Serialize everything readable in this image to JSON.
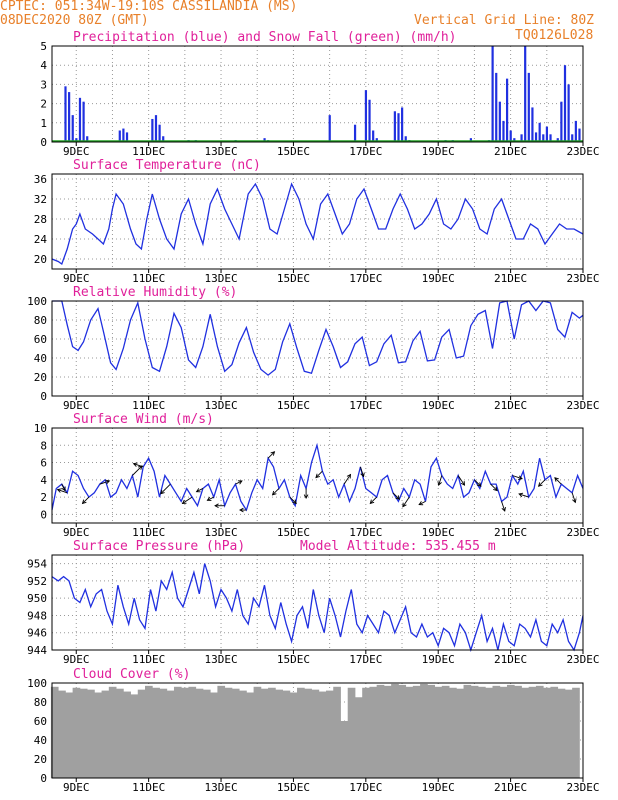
{
  "header": {
    "line1_left": "CPTEC:  051:34W-19:10S  CASSILANDIA (MS)",
    "line2_left": "08DEC2020 80Z (GMT)",
    "line2_right": "Vertical Grid Line: 80Z",
    "run_id": "TQ0126L028",
    "colors": {
      "header": "#e8802a",
      "title": "#e0209a",
      "series": "#2030e0",
      "snow": "#20a020",
      "cloud": "#a0a0a0"
    }
  },
  "chart_data": [
    {
      "type": "bar",
      "title": "Precipitation (blue) and Snow Fall (green) (mm/h)",
      "ylim": [
        0,
        5
      ],
      "yticks": [
        0,
        1,
        2,
        3,
        4,
        5
      ],
      "xticks": [
        "9DEC",
        "11DEC",
        "13DEC",
        "15DEC",
        "17DEC",
        "19DEC",
        "21DEC",
        "23DEC"
      ],
      "xlim_days": [
        8.33,
        23
      ],
      "grid": true,
      "series": [
        {
          "name": "precipitation",
          "x": [
            8.7,
            8.8,
            8.9,
            9.0,
            9.1,
            9.2,
            9.3,
            10.2,
            10.3,
            10.4,
            11.1,
            11.2,
            11.3,
            11.4,
            12.1,
            12.3,
            13.4,
            14.2,
            14.3,
            16.0,
            16.7,
            17.0,
            17.1,
            17.2,
            17.3,
            17.8,
            17.9,
            18.0,
            18.1,
            18.2,
            19.2,
            19.4,
            19.9,
            20.4,
            20.5,
            20.6,
            20.7,
            20.8,
            20.9,
            21.0,
            21.1,
            21.3,
            21.4,
            21.5,
            21.6,
            21.7,
            21.8,
            21.9,
            22.0,
            22.1,
            22.3,
            22.4,
            22.5,
            22.6,
            22.7,
            22.8,
            22.9
          ],
          "values": [
            2.9,
            2.6,
            1.4,
            0.2,
            2.3,
            2.1,
            0.3,
            0.6,
            0.7,
            0.5,
            1.2,
            1.4,
            0.9,
            0.3,
            0.1,
            0.1,
            0.1,
            0.2,
            0.1,
            1.4,
            0.9,
            2.7,
            2.2,
            0.6,
            0.2,
            1.6,
            1.5,
            1.8,
            0.3,
            0.1,
            0.1,
            0.1,
            0.2,
            0.1,
            5.0,
            3.6,
            2.1,
            1.1,
            3.3,
            0.6,
            0.2,
            0.4,
            5.0,
            3.6,
            1.8,
            0.5,
            1.0,
            0.4,
            0.8,
            0.4,
            0.2,
            2.1,
            4.0,
            3.0,
            0.4,
            1.1,
            0.7
          ]
        },
        {
          "name": "snow fall",
          "x": [],
          "values": []
        }
      ]
    },
    {
      "type": "line",
      "title": "Surface Temperature (nC)",
      "ylim": [
        18,
        37
      ],
      "yticks": [
        20,
        24,
        28,
        32,
        36
      ],
      "xticks": [
        "9DEC",
        "11DEC",
        "13DEC",
        "15DEC",
        "17DEC",
        "19DEC",
        "21DEC",
        "23DEC"
      ],
      "xlim_days": [
        8.33,
        23
      ],
      "grid": true,
      "x": [
        8.33,
        8.5,
        8.6,
        8.75,
        8.9,
        9.0,
        9.1,
        9.25,
        9.45,
        9.6,
        9.75,
        9.9,
        10.0,
        10.1,
        10.3,
        10.5,
        10.65,
        10.8,
        10.95,
        11.1,
        11.3,
        11.5,
        11.7,
        11.9,
        12.1,
        12.3,
        12.5,
        12.7,
        12.9,
        13.1,
        13.3,
        13.5,
        13.75,
        13.95,
        14.15,
        14.35,
        14.55,
        14.75,
        14.95,
        15.15,
        15.35,
        15.55,
        15.75,
        15.95,
        16.15,
        16.35,
        16.55,
        16.75,
        16.95,
        17.15,
        17.35,
        17.55,
        17.75,
        17.95,
        18.15,
        18.35,
        18.55,
        18.75,
        18.95,
        19.15,
        19.35,
        19.55,
        19.75,
        19.95,
        20.15,
        20.35,
        20.55,
        20.75,
        20.95,
        21.15,
        21.35,
        21.55,
        21.75,
        21.95,
        22.15,
        22.35,
        22.55,
        22.75,
        23.0
      ],
      "values": [
        20,
        19.5,
        19,
        22,
        26,
        27,
        29,
        26,
        25,
        24,
        23,
        26,
        30,
        33,
        31,
        26,
        23,
        22,
        28,
        33,
        28,
        24,
        22,
        29,
        32,
        27,
        23,
        31,
        34,
        30,
        27,
        24,
        33,
        35,
        32,
        26,
        25,
        30,
        35,
        32,
        27,
        24,
        31,
        33,
        29,
        25,
        27,
        32,
        34,
        30,
        26,
        26,
        30,
        33,
        30,
        26,
        27,
        29,
        32,
        27,
        26,
        28,
        32,
        30,
        26,
        25,
        30,
        32,
        28,
        24,
        24,
        27,
        26,
        23,
        25,
        27,
        26,
        26,
        25
      ]
    },
    {
      "type": "line",
      "title": "Relative Humidity (%)",
      "ylim": [
        0,
        100
      ],
      "yticks": [
        0,
        20,
        40,
        60,
        80,
        100
      ],
      "xticks": [
        "9DEC",
        "11DEC",
        "13DEC",
        "15DEC",
        "17DEC",
        "19DEC",
        "21DEC",
        "23DEC"
      ],
      "xlim_days": [
        8.33,
        23
      ],
      "grid": true,
      "x": [
        8.33,
        8.6,
        8.75,
        8.9,
        9.05,
        9.2,
        9.4,
        9.6,
        9.75,
        9.95,
        10.1,
        10.3,
        10.5,
        10.7,
        10.9,
        11.1,
        11.3,
        11.5,
        11.7,
        11.9,
        12.1,
        12.3,
        12.5,
        12.7,
        12.9,
        13.1,
        13.3,
        13.5,
        13.7,
        13.9,
        14.1,
        14.3,
        14.5,
        14.7,
        14.9,
        15.1,
        15.3,
        15.5,
        15.7,
        15.9,
        16.1,
        16.3,
        16.5,
        16.7,
        16.9,
        17.1,
        17.3,
        17.5,
        17.7,
        17.9,
        18.1,
        18.3,
        18.5,
        18.7,
        18.9,
        19.1,
        19.3,
        19.5,
        19.7,
        19.9,
        20.1,
        20.3,
        20.5,
        20.7,
        20.9,
        21.1,
        21.3,
        21.5,
        21.7,
        21.9,
        22.1,
        22.3,
        22.5,
        22.7,
        22.9,
        23.0
      ],
      "values": [
        100,
        100,
        75,
        52,
        48,
        57,
        80,
        92,
        68,
        35,
        28,
        50,
        80,
        98,
        60,
        30,
        26,
        52,
        87,
        72,
        38,
        30,
        52,
        86,
        52,
        26,
        33,
        56,
        72,
        46,
        28,
        22,
        28,
        57,
        76,
        50,
        26,
        24,
        48,
        70,
        52,
        30,
        36,
        55,
        62,
        32,
        36,
        55,
        64,
        35,
        36,
        58,
        68,
        37,
        38,
        62,
        70,
        40,
        42,
        74,
        86,
        90,
        50,
        98,
        100,
        60,
        96,
        100,
        90,
        100,
        98,
        70,
        62,
        88,
        82,
        85
      ]
    },
    {
      "type": "line",
      "title": "Surface Wind (m/s)",
      "ylim": [
        -1,
        10
      ],
      "yticks": [
        0,
        2,
        4,
        6,
        8,
        10
      ],
      "xticks": [
        "9DEC",
        "11DEC",
        "13DEC",
        "15DEC",
        "17DEC",
        "19DEC",
        "21DEC",
        "23DEC"
      ],
      "xlim_days": [
        8.33,
        23
      ],
      "grid": true,
      "x": [
        8.33,
        8.45,
        8.6,
        8.75,
        8.9,
        9.05,
        9.2,
        9.35,
        9.5,
        9.65,
        9.8,
        9.95,
        10.1,
        10.25,
        10.4,
        10.55,
        10.7,
        10.85,
        11.0,
        11.15,
        11.3,
        11.45,
        11.6,
        11.75,
        11.9,
        12.05,
        12.2,
        12.35,
        12.5,
        12.65,
        12.8,
        12.95,
        13.1,
        13.25,
        13.4,
        13.55,
        13.7,
        13.85,
        14.0,
        14.15,
        14.3,
        14.45,
        14.6,
        14.75,
        14.9,
        15.05,
        15.2,
        15.35,
        15.5,
        15.65,
        15.8,
        15.95,
        16.1,
        16.25,
        16.4,
        16.55,
        16.7,
        16.85,
        17.0,
        17.15,
        17.3,
        17.45,
        17.6,
        17.75,
        17.9,
        18.05,
        18.2,
        18.35,
        18.5,
        18.65,
        18.8,
        18.95,
        19.1,
        19.25,
        19.4,
        19.55,
        19.7,
        19.85,
        20.0,
        20.15,
        20.3,
        20.45,
        20.6,
        20.75,
        20.9,
        21.05,
        21.2,
        21.35,
        21.5,
        21.65,
        21.8,
        21.95,
        22.1,
        22.25,
        22.4,
        22.55,
        22.7,
        22.85,
        23.0
      ],
      "values": [
        0.5,
        3.0,
        3.5,
        2.5,
        5.0,
        4.5,
        3.0,
        2.0,
        2.5,
        3.5,
        4.0,
        2.0,
        2.5,
        4.0,
        3.0,
        4.5,
        2.0,
        5.5,
        6.5,
        5.0,
        2.0,
        4.5,
        3.5,
        2.5,
        1.5,
        3.0,
        2.0,
        1.0,
        3.0,
        3.5,
        2.0,
        4.0,
        1.0,
        2.5,
        3.5,
        1.5,
        0.5,
        2.5,
        4.0,
        3.0,
        6.5,
        5.5,
        3.0,
        4.0,
        2.0,
        1.0,
        4.5,
        3.0,
        6.0,
        8.0,
        5.0,
        3.5,
        4.0,
        2.0,
        3.5,
        1.5,
        3.0,
        5.5,
        3.0,
        2.5,
        2.0,
        4.0,
        4.5,
        2.5,
        1.5,
        3.0,
        2.0,
        4.0,
        3.5,
        1.5,
        5.5,
        6.5,
        4.5,
        3.5,
        3.0,
        4.5,
        2.0,
        2.5,
        4.0,
        3.0,
        5.0,
        3.5,
        3.5,
        1.5,
        2.0,
        4.5,
        3.5,
        5.0,
        2.0,
        3.0,
        6.5,
        4.0,
        4.5,
        2.0,
        3.5,
        3.0,
        2.5,
        4.5,
        3.0
      ],
      "vectors": [
        {
          "x": 8.6,
          "u": 1,
          "v": -2
        },
        {
          "x": 8.75,
          "u": -3,
          "v": 1
        },
        {
          "x": 9.35,
          "u": -2,
          "v": -2
        },
        {
          "x": 9.65,
          "u": 3,
          "v": 1
        },
        {
          "x": 10.55,
          "u": 3,
          "v": 3
        },
        {
          "x": 10.85,
          "u": -3,
          "v": 1
        },
        {
          "x": 11.6,
          "u": -3,
          "v": -3
        },
        {
          "x": 12.2,
          "u": -3,
          "v": -2
        },
        {
          "x": 12.5,
          "u": -2,
          "v": -1
        },
        {
          "x": 12.8,
          "u": -2,
          "v": -1
        },
        {
          "x": 13.1,
          "u": -3,
          "v": 0
        },
        {
          "x": 13.4,
          "u": 2,
          "v": 1
        },
        {
          "x": 13.7,
          "u": -2,
          "v": 0
        },
        {
          "x": 14.3,
          "u": 2,
          "v": 2
        },
        {
          "x": 14.6,
          "u": -2,
          "v": -2
        },
        {
          "x": 14.9,
          "u": 2,
          "v": -2
        },
        {
          "x": 15.35,
          "u": 0,
          "v": -3
        },
        {
          "x": 15.8,
          "u": -2,
          "v": -2
        },
        {
          "x": 16.4,
          "u": 2,
          "v": 3
        },
        {
          "x": 16.85,
          "u": 1,
          "v": -3
        },
        {
          "x": 17.3,
          "u": -2,
          "v": -2
        },
        {
          "x": 17.75,
          "u": 2,
          "v": -2
        },
        {
          "x": 18.2,
          "u": -2,
          "v": -3
        },
        {
          "x": 18.65,
          "u": -2,
          "v": -1
        },
        {
          "x": 19.1,
          "u": -1,
          "v": -3
        },
        {
          "x": 19.55,
          "u": 2,
          "v": -3
        },
        {
          "x": 20.0,
          "u": 2,
          "v": -2
        },
        {
          "x": 20.45,
          "u": 2,
          "v": -2
        },
        {
          "x": 20.75,
          "u": 1,
          "v": -3
        },
        {
          "x": 21.05,
          "u": 3,
          "v": -1
        },
        {
          "x": 21.5,
          "u": -3,
          "v": 1
        },
        {
          "x": 21.95,
          "u": -2,
          "v": -2
        },
        {
          "x": 22.4,
          "u": -2,
          "v": 2
        },
        {
          "x": 22.7,
          "u": 1,
          "v": -3
        }
      ]
    },
    {
      "type": "line",
      "title": "Surface Pressure (hPa)",
      "annotation": "Model Altitude: 535.455  m",
      "ylim": [
        944,
        955
      ],
      "yticks": [
        944,
        946,
        948,
        950,
        952,
        954
      ],
      "xticks": [
        "9DEC",
        "11DEC",
        "13DEC",
        "15DEC",
        "17DEC",
        "19DEC",
        "21DEC",
        "23DEC"
      ],
      "xlim_days": [
        8.33,
        23
      ],
      "grid": true,
      "x": [
        8.33,
        8.5,
        8.65,
        8.8,
        8.95,
        9.1,
        9.25,
        9.4,
        9.55,
        9.7,
        9.85,
        10.0,
        10.15,
        10.3,
        10.45,
        10.6,
        10.75,
        10.9,
        11.05,
        11.2,
        11.35,
        11.5,
        11.65,
        11.8,
        11.95,
        12.1,
        12.25,
        12.4,
        12.55,
        12.7,
        12.85,
        13.0,
        13.15,
        13.3,
        13.45,
        13.6,
        13.75,
        13.9,
        14.05,
        14.2,
        14.35,
        14.5,
        14.65,
        14.8,
        14.95,
        15.1,
        15.25,
        15.4,
        15.55,
        15.7,
        15.85,
        16.0,
        16.15,
        16.3,
        16.45,
        16.6,
        16.75,
        16.9,
        17.05,
        17.2,
        17.35,
        17.5,
        17.65,
        17.8,
        17.95,
        18.1,
        18.25,
        18.4,
        18.55,
        18.7,
        18.85,
        19.0,
        19.15,
        19.3,
        19.45,
        19.6,
        19.75,
        19.9,
        20.05,
        20.2,
        20.35,
        20.5,
        20.65,
        20.8,
        20.95,
        21.1,
        21.25,
        21.4,
        21.55,
        21.7,
        21.85,
        22.0,
        22.15,
        22.3,
        22.45,
        22.6,
        22.75,
        22.9,
        23.0
      ],
      "values": [
        952.5,
        952,
        952.5,
        952,
        950,
        949.5,
        951,
        949,
        950.5,
        951,
        948.5,
        947,
        951.5,
        949,
        947,
        950,
        947.5,
        946.5,
        951,
        948.5,
        952,
        951,
        953,
        950,
        949,
        951,
        953,
        950.5,
        954,
        952,
        949,
        951,
        950,
        948.5,
        951,
        948,
        947,
        950,
        949,
        951.5,
        948,
        946.5,
        949.5,
        947,
        945,
        948,
        949,
        946.5,
        951,
        948,
        946,
        950,
        948,
        945.5,
        948.5,
        951,
        947,
        946,
        948,
        947,
        946,
        948.5,
        948,
        946,
        947.5,
        949,
        946,
        945.5,
        947,
        945.5,
        946,
        944.5,
        946.5,
        946,
        944.5,
        947,
        946,
        944,
        946,
        948,
        945,
        946.5,
        944,
        947,
        945,
        944.5,
        947,
        946.5,
        945.5,
        947.5,
        945,
        944.5,
        947,
        946,
        947.5,
        945,
        944,
        946,
        948
      ]
    },
    {
      "type": "bar",
      "title": "Cloud Cover (%)",
      "ylim": [
        0,
        100
      ],
      "yticks": [
        0,
        20,
        40,
        60,
        80,
        100
      ],
      "xticks": [
        "9DEC",
        "11DEC",
        "13DEC",
        "15DEC",
        "17DEC",
        "19DEC",
        "21DEC",
        "23DEC"
      ],
      "xlim_days": [
        8.33,
        23
      ],
      "grid": true,
      "x": [
        8.4,
        8.6,
        8.8,
        9.0,
        9.2,
        9.4,
        9.6,
        9.8,
        10.0,
        10.2,
        10.4,
        10.6,
        10.8,
        11.0,
        11.2,
        11.4,
        11.6,
        11.8,
        12.0,
        12.2,
        12.4,
        12.6,
        12.8,
        13.0,
        13.2,
        13.4,
        13.6,
        13.8,
        14.0,
        14.2,
        14.4,
        14.6,
        14.8,
        15.0,
        15.2,
        15.4,
        15.6,
        15.8,
        16.0,
        16.2,
        16.4,
        16.6,
        16.8,
        17.0,
        17.2,
        17.4,
        17.6,
        17.8,
        18.0,
        18.2,
        18.4,
        18.6,
        18.8,
        19.0,
        19.2,
        19.4,
        19.6,
        19.8,
        20.0,
        20.2,
        20.4,
        20.6,
        20.8,
        21.0,
        21.2,
        21.4,
        21.6,
        21.8,
        22.0,
        22.2,
        22.4,
        22.6,
        22.8
      ],
      "values": [
        96,
        92,
        90,
        95,
        94,
        93,
        90,
        92,
        96,
        94,
        91,
        88,
        93,
        97,
        95,
        94,
        92,
        96,
        95,
        96,
        94,
        93,
        90,
        97,
        95,
        94,
        92,
        90,
        96,
        94,
        95,
        93,
        92,
        90,
        95,
        94,
        93,
        91,
        92,
        96,
        60,
        95,
        85,
        95,
        96,
        98,
        97,
        99,
        98,
        96,
        97,
        99,
        98,
        96,
        97,
        95,
        94,
        98,
        97,
        96,
        95,
        97,
        96,
        98,
        97,
        95,
        96,
        97,
        95,
        96,
        94,
        93,
        95
      ]
    }
  ]
}
